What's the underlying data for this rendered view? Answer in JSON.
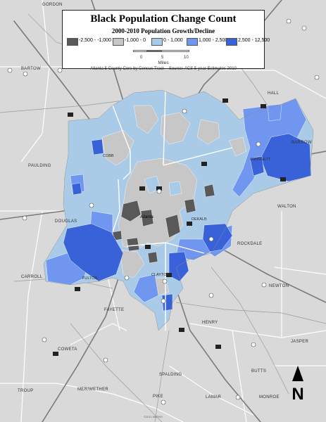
{
  "title": "Black Population Change Count",
  "subtitle": "2000-2010 Population Growth/Decline",
  "legend": {
    "classes": [
      {
        "label": "-2,500 - -1,000",
        "color": "#595959"
      },
      {
        "label": "-1,000 - 0",
        "color": "#c7c7c7"
      },
      {
        "label": "0 - 1,000",
        "color": "#a9cbe8"
      },
      {
        "label": "1,000 - 2,500",
        "color": "#7196ef"
      },
      {
        "label": "2,500 - 12,500",
        "color": "#3a62d8"
      }
    ],
    "scale_labels": [
      "0",
      "5",
      "10"
    ],
    "scale_unit": "Miles",
    "source": "Atlanta 5-County Core by Census Tract -- Source: ACS 5-year Estimates 2010"
  },
  "counties": {
    "gordon": "GORDON",
    "bartow": "BARTOW",
    "paulding": "PAULDING",
    "cobb": "COBB",
    "douglas": "DOUGLAS",
    "carroll": "CARROLL",
    "fulton": "FULTON",
    "gwinnett": "GWINNETT",
    "barrow": "BARROW",
    "hall": "HALL",
    "walton": "WALTON",
    "dekalb": "DEKALB",
    "rockdale": "ROCKDALE",
    "newton": "NEWTON",
    "clayton": "CLAYTON",
    "fayette": "FAYETTE",
    "henry": "HENRY",
    "coweta": "COWETA",
    "jasper": "JASPER",
    "butts": "BUTTS",
    "spalding": "SPALDING",
    "troup": "TROUP",
    "meriwether": "MERIWETHER",
    "pike": "PIKE",
    "lamar": "LAMAR",
    "monroe": "MONROE"
  },
  "city": "Atlanta",
  "north_label": "N",
  "copyright": "©2011 NMTRS",
  "colors": {
    "background": "#d9d9d9",
    "county_line": "#ffffff",
    "highway": "#7a7a7a",
    "class_1": "#595959",
    "class_2": "#c7c7c7",
    "class_3": "#a9cbe8",
    "class_4": "#7196ef",
    "class_5": "#3a62d8"
  }
}
